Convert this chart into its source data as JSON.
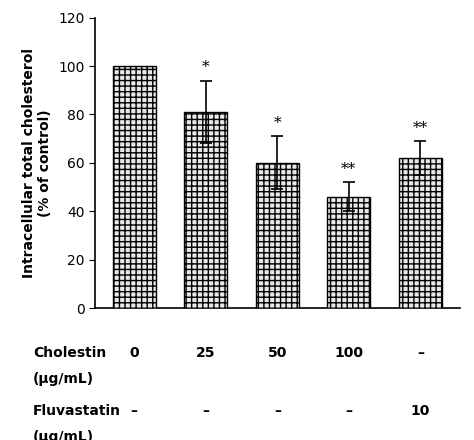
{
  "categories": [
    "0",
    "25",
    "50",
    "100",
    "–"
  ],
  "values": [
    100,
    81,
    60,
    46,
    62
  ],
  "errors": [
    0,
    13,
    11,
    6,
    7
  ],
  "sig_labels": [
    "",
    "*",
    "*",
    "**",
    "**"
  ],
  "bar_color": "#e8e8e8",
  "bar_edgecolor": "#000000",
  "hatch": "+++",
  "ylabel": "Intracellular total cholesterol\n(% of control)",
  "ylim": [
    0,
    120
  ],
  "yticks": [
    0,
    20,
    40,
    60,
    80,
    100,
    120
  ],
  "cholestin_label": "Cholestin",
  "cholestin_unit": "(μg/mL)",
  "cholestin_values": [
    "0",
    "25",
    "50",
    "100",
    "–"
  ],
  "fluvastatin_label": "Fluvastatin",
  "fluvastatin_unit": "(μg/mL)",
  "fluvastatin_values": [
    "–",
    "–",
    "–",
    "–",
    "10"
  ],
  "axis_fontsize": 10,
  "tick_fontsize": 10,
  "label_fontsize": 10,
  "sig_fontsize": 11,
  "bar_width": 0.6,
  "background_color": "#ffffff",
  "xlim_left": -0.55,
  "xlim_right": 4.55
}
